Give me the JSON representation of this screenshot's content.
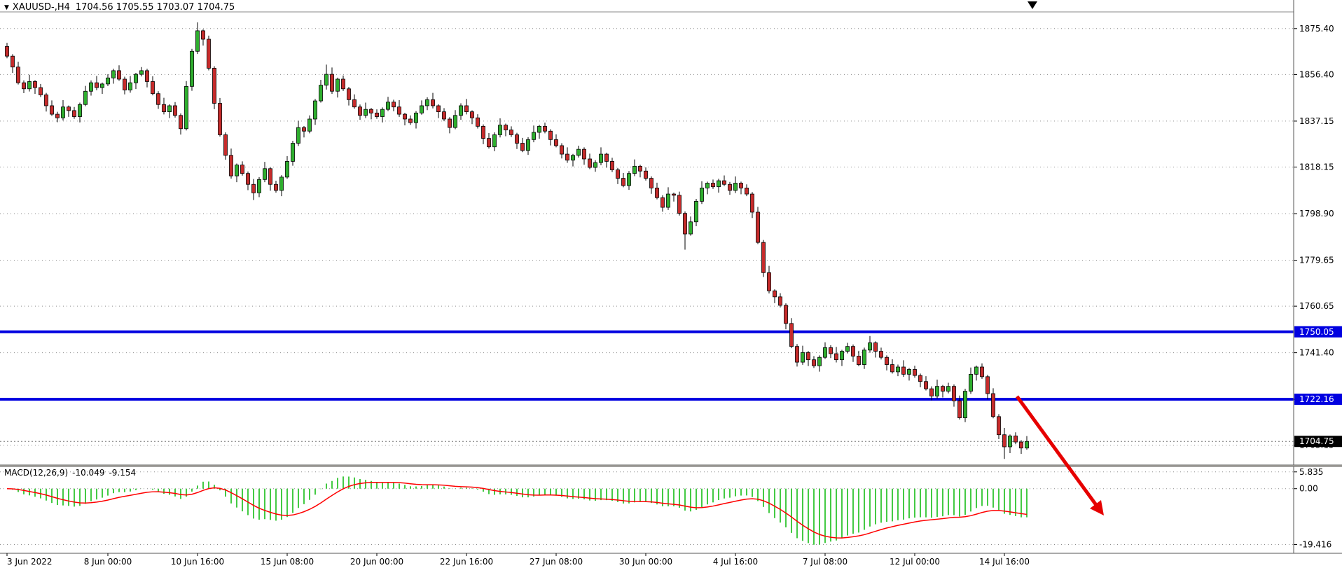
{
  "window": {
    "title_symbol": "XAUUSD-,H4",
    "title_ohlc": "1704.56 1705.55 1703.07 1704.75"
  },
  "icons": {
    "symbol_dropdown": "▼"
  },
  "chart_data": {
    "type": "candlestick",
    "symbol": "XAUUSD",
    "timeframe": "H4",
    "candlestick": {
      "open_first": 1868.0,
      "closes": [
        1864.0,
        1859.5,
        1853.0,
        1850.5,
        1853.5,
        1851.0,
        1848.0,
        1843.5,
        1840.0,
        1838.5,
        1843.0,
        1841.5,
        1839.0,
        1844.0,
        1849.5,
        1853.0,
        1851.0,
        1852.5,
        1855.0,
        1858.0,
        1854.5,
        1850.0,
        1853.0,
        1856.5,
        1858.0,
        1853.5,
        1848.5,
        1844.0,
        1841.0,
        1843.5,
        1839.5,
        1834.0,
        1851.5,
        1866.0,
        1874.5,
        1871.0,
        1859.0,
        1844.5,
        1831.5,
        1823.0,
        1814.5,
        1819.0,
        1815.5,
        1811.0,
        1807.5,
        1813.0,
        1817.5,
        1811.0,
        1808.5,
        1814.0,
        1820.5,
        1828.0,
        1834.5,
        1833.0,
        1838.0,
        1845.5,
        1852.0,
        1856.5,
        1849.5,
        1854.5,
        1850.5,
        1846.0,
        1843.0,
        1839.5,
        1842.0,
        1840.5,
        1839.0,
        1842.0,
        1845.0,
        1843.0,
        1840.0,
        1838.0,
        1836.5,
        1840.5,
        1843.5,
        1846.0,
        1843.5,
        1841.0,
        1838.0,
        1834.5,
        1839.5,
        1843.5,
        1841.0,
        1838.5,
        1835.0,
        1830.0,
        1826.5,
        1831.5,
        1835.5,
        1833.5,
        1831.5,
        1828.0,
        1825.0,
        1829.5,
        1832.5,
        1835.0,
        1833.0,
        1829.5,
        1827.0,
        1823.5,
        1821.0,
        1823.0,
        1825.5,
        1821.5,
        1818.0,
        1820.0,
        1823.5,
        1820.5,
        1817.0,
        1813.5,
        1810.5,
        1815.5,
        1818.5,
        1816.5,
        1813.5,
        1809.5,
        1805.5,
        1801.5,
        1807.0,
        1806.5,
        1799.0,
        1790.5,
        1795.5,
        1804.0,
        1809.5,
        1811.5,
        1810.0,
        1812.5,
        1811.0,
        1808.5,
        1811.5,
        1809.5,
        1807.0,
        1799.5,
        1787.0,
        1774.5,
        1767.0,
        1764.5,
        1761.0,
        1753.5,
        1744.0,
        1737.5,
        1741.5,
        1738.5,
        1736.0,
        1739.5,
        1743.5,
        1741.0,
        1738.5,
        1742.0,
        1744.0,
        1740.0,
        1736.5,
        1742.5,
        1745.5,
        1742.0,
        1739.5,
        1736.5,
        1733.5,
        1735.5,
        1732.5,
        1734.5,
        1732.0,
        1729.5,
        1726.5,
        1723.5,
        1727.5,
        1725.5,
        1727.5,
        1721.5,
        1714.5,
        1725.5,
        1732.5,
        1735.5,
        1731.5,
        1724.5,
        1715.0,
        1707.5,
        1702.5,
        1707.0,
        1704.5,
        1702.0,
        1704.75
      ],
      "wick_high_pattern": [
        1.5,
        0.8,
        2.2,
        1.0,
        2.8,
        0.6
      ],
      "wick_low_pattern": [
        0.9,
        2.4,
        0.7,
        1.8,
        1.1,
        2.6
      ],
      "high_overrides": {
        "34": 1878.0,
        "57": 1860.5
      },
      "low_overrides": {
        "44": 1804.5,
        "121": 1784.0,
        "178": 1697.5
      },
      "y_ticks": [
        {
          "label": "1875.40",
          "value": 1875.4
        },
        {
          "label": "1856.40",
          "value": 1856.4
        },
        {
          "label": "1837.15",
          "value": 1837.15
        },
        {
          "label": "1818.15",
          "value": 1818.15
        },
        {
          "label": "1798.90",
          "value": 1798.9
        },
        {
          "label": "1779.65",
          "value": 1779.65
        },
        {
          "label": "1760.65",
          "value": 1760.65
        },
        {
          "label": "1741.40",
          "value": 1741.4
        },
        {
          "label": "1722.15",
          "value": 1722.15
        },
        {
          "label": "1703.15",
          "value": 1703.15
        }
      ],
      "price_range": [
        1695,
        1882
      ],
      "levels": [
        {
          "label": "1750.05",
          "value": 1750.05
        },
        {
          "label": "1722.16",
          "value": 1722.16
        }
      ],
      "current_price": {
        "label": "1704.75",
        "value": 1704.75
      },
      "up_color": "#2eae2e",
      "down_color": "#c62b2b",
      "wick_color": "#000000",
      "level_color": "#0000e0"
    },
    "x_labels": [
      {
        "bar": 0,
        "label": "3 Jun 2022"
      },
      {
        "bar": 18,
        "label": "8 Jun 00:00"
      },
      {
        "bar": 34,
        "label": "10 Jun 16:00"
      },
      {
        "bar": 50,
        "label": "15 Jun 08:00"
      },
      {
        "bar": 66,
        "label": "20 Jun 00:00"
      },
      {
        "bar": 82,
        "label": "22 Jun 16:00"
      },
      {
        "bar": 98,
        "label": "27 Jun 08:00"
      },
      {
        "bar": 114,
        "label": "30 Jun 00:00"
      },
      {
        "bar": 130,
        "label": "4 Jul 16:00"
      },
      {
        "bar": 146,
        "label": "7 Jul 08:00"
      },
      {
        "bar": 162,
        "label": "12 Jul 00:00"
      },
      {
        "bar": 178,
        "label": "14 Jul 16:00"
      }
    ],
    "macd_panel": {
      "label": "MACD(12,26,9)",
      "macd_value": "-10.049",
      "signal_value": "-9.154",
      "fast": 12,
      "slow": 26,
      "signal": 9,
      "y_ticks": [
        {
          "label": "5.835",
          "value": 5.835
        },
        {
          "label": "0.00",
          "value": 0
        },
        {
          "label": "-19.416",
          "value": -19.416
        }
      ],
      "value_range": [
        -21.5,
        7.0
      ],
      "histogram_color": "#2fc42f",
      "signal_color": "#ff0000"
    },
    "annotations": {
      "red_arrow": {
        "desc": "thick red arrow pointing down-right from below 1722.16 level into MACD panel",
        "color": "#e60000"
      },
      "top_marker": {
        "desc": "small black triangle marker at top edge above last bars",
        "color": "#000000"
      }
    }
  }
}
